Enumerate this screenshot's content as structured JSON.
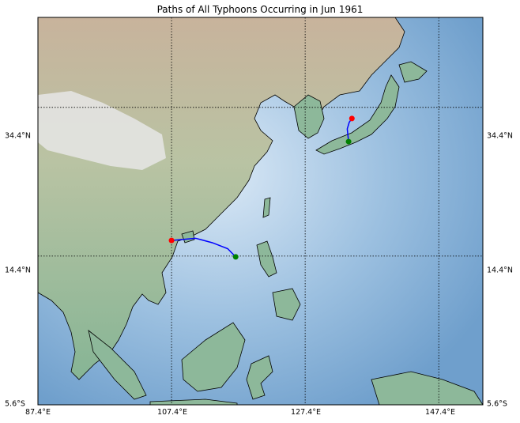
{
  "title": "Paths of All Typhoons Occurring in Jun 1961",
  "axes": {
    "lon_ticks": [
      "87.4°E",
      "107.4°E",
      "127.4°E",
      "147.4°E"
    ],
    "lat_ticks_left": [
      "34.4°N",
      "14.4°N",
      "5.6°S"
    ],
    "lat_ticks_right": [
      "34.4°N",
      "14.4°N",
      "5.6°S"
    ]
  },
  "map": {
    "projection": "equirectangular",
    "lon_range": [
      87.4,
      154.0
    ],
    "lat_range": [
      -5.6,
      46.5
    ],
    "gridlines": true,
    "meridians": [
      87.4,
      107.4,
      127.4,
      147.4
    ],
    "parallels": [
      -5.6,
      14.4,
      34.4
    ],
    "colors": {
      "ocean": "#7aa8d4",
      "shallow": "#cfe1f2",
      "land": "#8db89a",
      "mountain": "#c9b4a0",
      "track": "#0000ff",
      "start": "#008000",
      "end": "#ff0000"
    }
  },
  "tracks": [
    {
      "points": [
        [
          117.0,
          14.3
        ],
        [
          115.8,
          15.4
        ],
        [
          113.5,
          16.2
        ],
        [
          111.0,
          16.8
        ],
        [
          107.4,
          16.5
        ]
      ]
    },
    {
      "points": [
        [
          133.9,
          29.8
        ],
        [
          133.7,
          31.5
        ],
        [
          134.0,
          32.4
        ],
        [
          134.4,
          32.9
        ]
      ]
    }
  ]
}
